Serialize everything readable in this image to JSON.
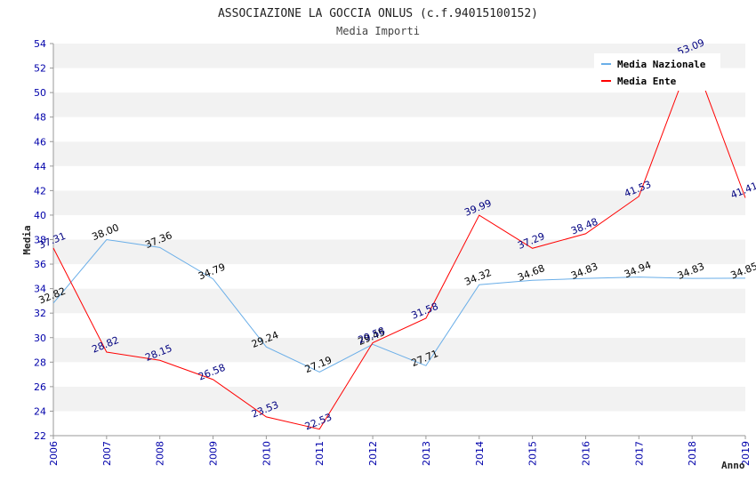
{
  "chart_data": {
    "type": "line",
    "title": "ASSOCIAZIONE LA GOCCIA ONLUS (c.f.94015100152)",
    "subtitle": "Media Importi",
    "xlabel": "Anno",
    "ylabel": "Media",
    "ylim": [
      22,
      54
    ],
    "yticks": [
      22,
      24,
      26,
      28,
      30,
      32,
      34,
      36,
      38,
      40,
      42,
      44,
      46,
      48,
      50,
      52,
      54
    ],
    "categories": [
      "2006",
      "2007",
      "2008",
      "2009",
      "2010",
      "2011",
      "2012",
      "2013",
      "2014",
      "2015",
      "2016",
      "2017",
      "2018",
      "2019"
    ],
    "legend_position": "top-right",
    "grid": "horizontal alternating bands",
    "series": [
      {
        "name": "Media Nazionale",
        "color": "#6aaee8",
        "label_color": "#000000",
        "values": [
          32.82,
          38.0,
          37.36,
          34.79,
          29.24,
          27.19,
          29.45,
          27.71,
          34.32,
          34.68,
          34.83,
          34.94,
          34.83,
          34.85
        ],
        "labels": [
          "32.82",
          "38.00",
          "37.36",
          "34.79",
          "29.24",
          "27.19",
          "29.45",
          "27.71",
          "34.32",
          "34.68",
          "34.83",
          "34.94",
          "34.83",
          "34.85"
        ]
      },
      {
        "name": "Media Ente",
        "color": "#ff0000",
        "label_color": "#000080",
        "values": [
          37.31,
          28.82,
          28.15,
          26.58,
          23.53,
          22.53,
          29.58,
          31.58,
          39.99,
          37.29,
          38.48,
          41.53,
          53.09,
          41.41
        ],
        "labels": [
          "37.31",
          "28.82",
          "28.15",
          "26.58",
          "23.53",
          "22.53",
          "29.58",
          "31.58",
          "39.99",
          "37.29",
          "38.48",
          "41.53",
          "53.09",
          "41.41"
        ]
      }
    ]
  }
}
